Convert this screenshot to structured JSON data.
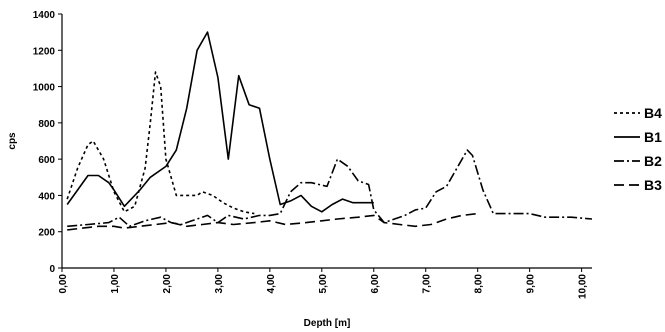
{
  "chart_data": {
    "type": "line",
    "title": "",
    "xlabel": "Depth [m]",
    "ylabel": "cps",
    "xlim": [
      0,
      10.2
    ],
    "ylim": [
      0,
      1400
    ],
    "yticks": [
      0,
      200,
      400,
      600,
      800,
      1000,
      1200,
      1400
    ],
    "xticks": [
      "0,00",
      "1,00",
      "2,00",
      "3,00",
      "4,00",
      "5,00",
      "6,00",
      "7,00",
      "8,00",
      "9,00",
      "10,00"
    ],
    "xtick_values": [
      0,
      1,
      2,
      3,
      4,
      5,
      6,
      7,
      8,
      9,
      10
    ],
    "grid": false,
    "legend_position": "right",
    "series": [
      {
        "name": "B4",
        "dash": "3,3",
        "x": [
          0.1,
          0.3,
          0.5,
          0.6,
          0.8,
          1.0,
          1.2,
          1.4,
          1.6,
          1.7,
          1.8,
          1.9,
          2.0,
          2.2,
          2.4,
          2.6,
          2.7,
          2.9,
          3.1,
          3.3,
          3.5,
          3.7
        ],
        "y": [
          380,
          550,
          680,
          700,
          600,
          420,
          310,
          340,
          550,
          800,
          1080,
          1000,
          600,
          400,
          400,
          400,
          420,
          400,
          360,
          330,
          310,
          300
        ]
      },
      {
        "name": "B1",
        "solid": true,
        "x": [
          0.1,
          0.3,
          0.5,
          0.7,
          0.9,
          1.0,
          1.2,
          1.5,
          1.7,
          2.0,
          2.2,
          2.4,
          2.6,
          2.8,
          3.0,
          3.2,
          3.4,
          3.6,
          3.8,
          4.0,
          4.2,
          4.4,
          4.6,
          4.8,
          5.0,
          5.2,
          5.4,
          5.6,
          5.8,
          6.0
        ],
        "y": [
          350,
          430,
          510,
          510,
          470,
          430,
          340,
          430,
          500,
          560,
          650,
          880,
          1200,
          1300,
          1050,
          600,
          1060,
          900,
          880,
          600,
          350,
          370,
          400,
          340,
          310,
          350,
          380,
          360,
          360,
          360
        ]
      },
      {
        "name": "B2",
        "dash": "10,3,2,3",
        "x": [
          0.1,
          0.5,
          0.9,
          1.1,
          1.3,
          1.6,
          1.9,
          2.1,
          2.3,
          2.5,
          2.8,
          3.0,
          3.2,
          3.5,
          3.8,
          4.0,
          4.2,
          4.4,
          4.6,
          4.8,
          5.1,
          5.3,
          5.5,
          5.7,
          5.9,
          6.0,
          6.2,
          6.4,
          6.6,
          6.8,
          7.0,
          7.2,
          7.4,
          7.6,
          7.8,
          7.9,
          8.1,
          8.3,
          8.6,
          9.0,
          9.3,
          9.8,
          10.2
        ],
        "y": [
          230,
          240,
          250,
          280,
          230,
          260,
          280,
          250,
          240,
          260,
          290,
          250,
          290,
          270,
          290,
          290,
          300,
          420,
          470,
          470,
          450,
          600,
          560,
          480,
          460,
          320,
          250,
          270,
          290,
          320,
          330,
          420,
          450,
          550,
          650,
          620,
          430,
          300,
          300,
          300,
          280,
          280,
          270
        ]
      },
      {
        "name": "B3",
        "dash": "10,5",
        "x": [
          0.1,
          0.4,
          0.7,
          1.0,
          1.2,
          1.5,
          1.8,
          2.1,
          2.4,
          2.7,
          3.0,
          3.3,
          3.7,
          4.0,
          4.3,
          4.7,
          5.0,
          5.3,
          5.7,
          6.0,
          6.2,
          6.5,
          6.8,
          7.1,
          7.4,
          7.7,
          8.0
        ],
        "y": [
          210,
          220,
          230,
          230,
          220,
          230,
          240,
          250,
          230,
          240,
          250,
          240,
          250,
          260,
          240,
          250,
          260,
          270,
          280,
          290,
          250,
          240,
          230,
          240,
          270,
          290,
          300
        ]
      }
    ]
  }
}
